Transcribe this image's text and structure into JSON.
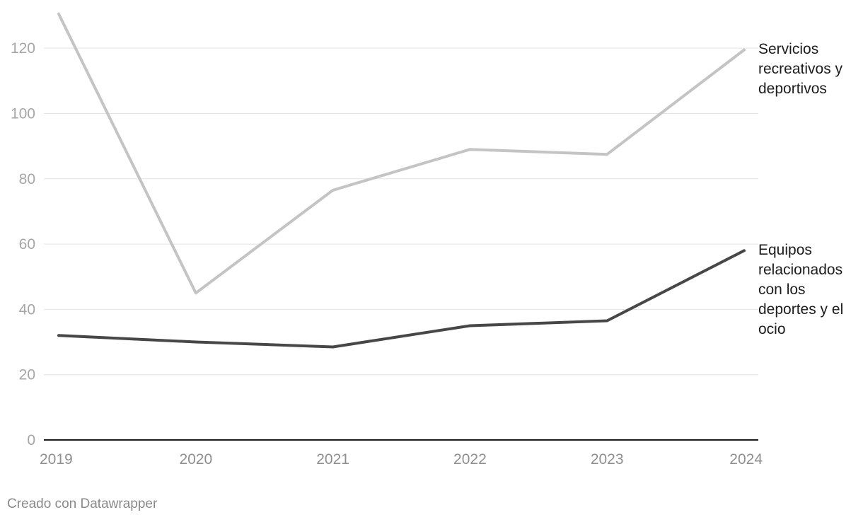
{
  "chart_data": {
    "type": "line",
    "x": [
      "2019",
      "2020",
      "2021",
      "2022",
      "2023",
      "2024"
    ],
    "series": [
      {
        "name": "Servicios recreativos y deportivos",
        "values": [
          130.5,
          45,
          76.5,
          89,
          87.5,
          119.5
        ],
        "color": "#c4c4c4"
      },
      {
        "name": "Equipos relacionados con los deportes y el ocio",
        "values": [
          32,
          30,
          28.5,
          35,
          36.5,
          58
        ],
        "color": "#474747"
      }
    ],
    "y_ticks": [
      "0",
      "20",
      "40",
      "60",
      "80",
      "100",
      "120"
    ],
    "ylim": [
      0,
      130
    ],
    "grid": true,
    "legend": "inline-right"
  },
  "footer": {
    "credit": "Creado con Datawrapper"
  }
}
